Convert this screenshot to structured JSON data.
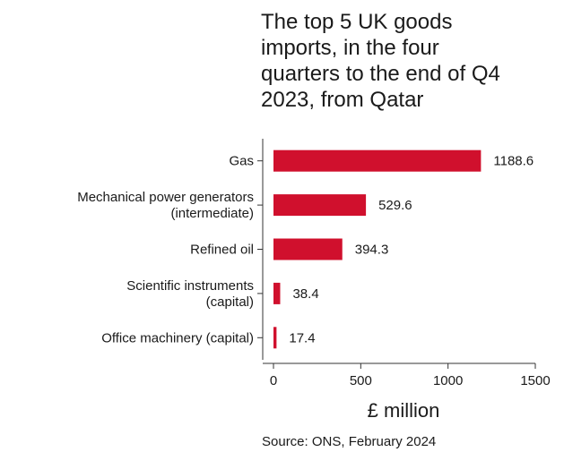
{
  "chart_data": {
    "type": "bar",
    "orientation": "horizontal",
    "title_lines": [
      "The top 5 UK goods",
      "imports, in the four",
      "quarters to the end of Q4",
      "2023, from Qatar"
    ],
    "categories": [
      [
        "Gas"
      ],
      [
        "Mechanical power generators",
        "(intermediate)"
      ],
      [
        "Refined oil"
      ],
      [
        "Scientific instruments",
        "(capital)"
      ],
      [
        "Office machinery (capital)"
      ]
    ],
    "values": [
      1188.6,
      529.6,
      394.3,
      38.4,
      17.4
    ],
    "value_labels": [
      "1188.6",
      "529.6",
      "394.3",
      "38.4",
      "17.4"
    ],
    "xlabel": "£ million",
    "xlim": [
      0,
      1500
    ],
    "xticks": [
      "0",
      "500",
      "1000",
      "1500"
    ],
    "bar_color": "#d0102d",
    "grid": false,
    "source": "Source: ONS, February 2024"
  }
}
